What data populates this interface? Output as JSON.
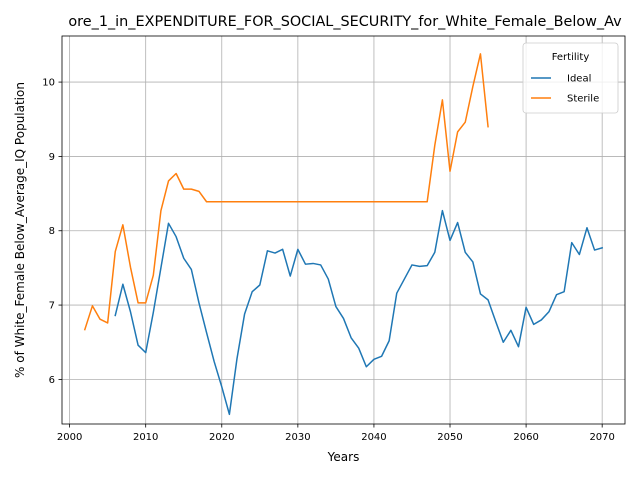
{
  "chart_data": {
    "type": "line",
    "title": "ore_1_in_EXPENDITURE_FOR_SOCIAL_SECURITY_for_White_Female_Below_Av",
    "xlabel": "Years",
    "ylabel": "% of White_Female Below_Average_IQ Population",
    "xlim": [
      1999,
      2073
    ],
    "ylim": [
      5.4,
      10.62
    ],
    "xticks": [
      2000,
      2010,
      2020,
      2030,
      2040,
      2050,
      2060,
      2070
    ],
    "yticks": [
      6,
      7,
      8,
      9,
      10
    ],
    "grid": true,
    "legend": {
      "title": "Fertility",
      "placement": "top-right"
    },
    "series": [
      {
        "name": "Ideal",
        "color": "#1f77b4",
        "x": [
          2006,
          2007,
          2008,
          2009,
          2010,
          2011,
          2012,
          2013,
          2014,
          2015,
          2016,
          2017,
          2018,
          2019,
          2020,
          2021,
          2022,
          2023,
          2024,
          2025,
          2026,
          2027,
          2028,
          2029,
          2030,
          2031,
          2032,
          2033,
          2034,
          2035,
          2036,
          2037,
          2038,
          2039,
          2040,
          2041,
          2042,
          2043,
          2044,
          2045,
          2046,
          2047,
          2048,
          2049,
          2050,
          2051,
          2052,
          2053,
          2054,
          2055,
          2056,
          2057,
          2058,
          2059,
          2060,
          2061,
          2062,
          2063,
          2064,
          2065,
          2066,
          2067,
          2068,
          2069,
          2070
        ],
        "y": [
          6.86,
          7.28,
          6.91,
          6.46,
          6.36,
          6.9,
          7.5,
          8.1,
          7.92,
          7.63,
          7.48,
          7.03,
          6.63,
          6.24,
          5.9,
          5.53,
          6.28,
          6.88,
          7.18,
          7.27,
          7.73,
          7.7,
          7.75,
          7.39,
          7.75,
          7.55,
          7.56,
          7.54,
          7.35,
          6.98,
          6.82,
          6.56,
          6.42,
          6.17,
          6.27,
          6.31,
          6.52,
          7.16,
          7.35,
          7.54,
          7.52,
          7.53,
          7.71,
          8.27,
          7.87,
          8.11,
          7.71,
          7.58,
          7.15,
          7.07,
          6.78,
          6.5,
          6.66,
          6.44,
          6.97,
          6.74,
          6.8,
          6.91,
          7.14,
          7.18,
          7.84,
          7.68,
          8.04,
          7.74,
          7.77
        ]
      },
      {
        "name": "Sterile",
        "color": "#ff7f0e",
        "x": [
          2002,
          2003,
          2004,
          2005,
          2006,
          2007,
          2008,
          2009,
          2010,
          2011,
          2012,
          2013,
          2014,
          2015,
          2016,
          2017,
          2018,
          2019,
          2020,
          2021,
          2022,
          2023,
          2024,
          2025,
          2026,
          2027,
          2028,
          2029,
          2030,
          2031,
          2032,
          2033,
          2034,
          2035,
          2036,
          2037,
          2038,
          2039,
          2040,
          2041,
          2042,
          2043,
          2044,
          2045,
          2046,
          2047,
          2048,
          2049,
          2050,
          2051,
          2052,
          2053,
          2054,
          2055
        ],
        "y": [
          6.67,
          6.99,
          6.81,
          6.76,
          7.72,
          8.08,
          7.51,
          7.03,
          7.03,
          7.4,
          8.27,
          8.67,
          8.77,
          8.56,
          8.56,
          8.53,
          8.39,
          8.39,
          8.39,
          8.39,
          8.39,
          8.39,
          8.39,
          8.39,
          8.39,
          8.39,
          8.39,
          8.39,
          8.39,
          8.39,
          8.39,
          8.39,
          8.39,
          8.39,
          8.39,
          8.39,
          8.39,
          8.39,
          8.39,
          8.39,
          8.39,
          8.39,
          8.39,
          8.39,
          8.39,
          8.39,
          9.15,
          9.76,
          8.8,
          9.33,
          9.46,
          9.94,
          10.38,
          9.4
        ]
      }
    ]
  }
}
